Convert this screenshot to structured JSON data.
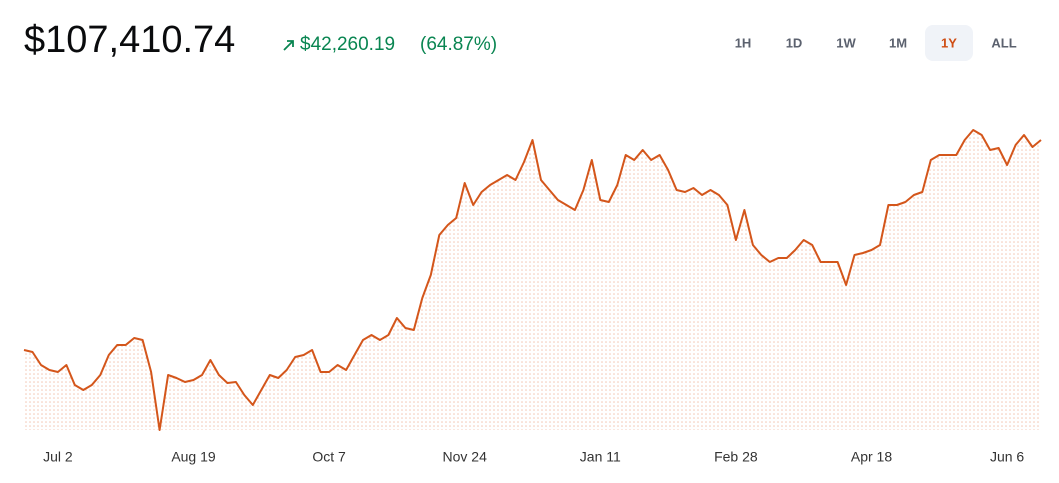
{
  "header": {
    "price": "$107,410.74",
    "change": "$42,260.19",
    "percent": "(64.87%)"
  },
  "timeframes": {
    "options": [
      "1H",
      "1D",
      "1W",
      "1M",
      "1Y",
      "ALL"
    ],
    "selected": "1Y"
  },
  "chart_data": {
    "type": "line",
    "color": "#d4561b",
    "ylim": [
      49050,
      115460
    ],
    "categories": [
      null,
      null,
      null,
      null,
      "Jul 2",
      null,
      null,
      null,
      null,
      null,
      null,
      null,
      null,
      null,
      null,
      null,
      null,
      null,
      null,
      null,
      "Aug 19",
      null,
      null,
      null,
      null,
      null,
      null,
      null,
      null,
      null,
      null,
      null,
      null,
      null,
      null,
      null,
      "Oct 7",
      null,
      null,
      null,
      null,
      null,
      null,
      null,
      null,
      null,
      null,
      null,
      null,
      null,
      null,
      null,
      "Nov 24",
      null,
      null,
      null,
      null,
      null,
      null,
      null,
      null,
      null,
      null,
      null,
      null,
      null,
      null,
      null,
      "Jan 11",
      null,
      null,
      null,
      null,
      null,
      null,
      null,
      null,
      null,
      null,
      null,
      null,
      null,
      null,
      null,
      "Feb 28",
      null,
      null,
      null,
      null,
      null,
      null,
      null,
      null,
      null,
      null,
      null,
      null,
      null,
      null,
      null,
      "Apr 18",
      null,
      null,
      null,
      null,
      null,
      null,
      null,
      null,
      null,
      null,
      null,
      null,
      null,
      null,
      null,
      "Jun 6",
      null,
      null,
      null,
      null
    ],
    "values": [
      65150,
      64750,
      62130,
      61130,
      60720,
      62130,
      58110,
      57100,
      58110,
      60120,
      64140,
      66160,
      66160,
      67560,
      67160,
      60720,
      49050,
      60120,
      59520,
      58710,
      59110,
      60120,
      63140,
      60120,
      58510,
      58710,
      56090,
      54080,
      57100,
      60120,
      59520,
      61130,
      63740,
      64140,
      65150,
      60720,
      60720,
      62130,
      61130,
      64140,
      67160,
      68170,
      67160,
      68170,
      71590,
      69580,
      69180,
      75610,
      80240,
      88290,
      90310,
      91710,
      98760,
      94330,
      96950,
      98360,
      99360,
      100370,
      99360,
      102980,
      107410,
      99360,
      97350,
      95340,
      94330,
      93320,
      97350,
      103390,
      95340,
      94930,
      98360,
      104390,
      103390,
      105400,
      103390,
      104390,
      101370,
      97350,
      96950,
      97750,
      96340,
      97350,
      96340,
      94330,
      87290,
      93320,
      86280,
      84270,
      82860,
      83660,
      83660,
      85270,
      87290,
      86280,
      82860,
      82860,
      82860,
      78230,
      84270,
      84670,
      85270,
      86280,
      94330,
      94330,
      94930,
      96340,
      96950,
      103390,
      104390,
      104390,
      104390,
      107410,
      109420,
      108420,
      105400,
      105800,
      102380,
      106400,
      108420,
      106000,
      107410.74
    ]
  }
}
